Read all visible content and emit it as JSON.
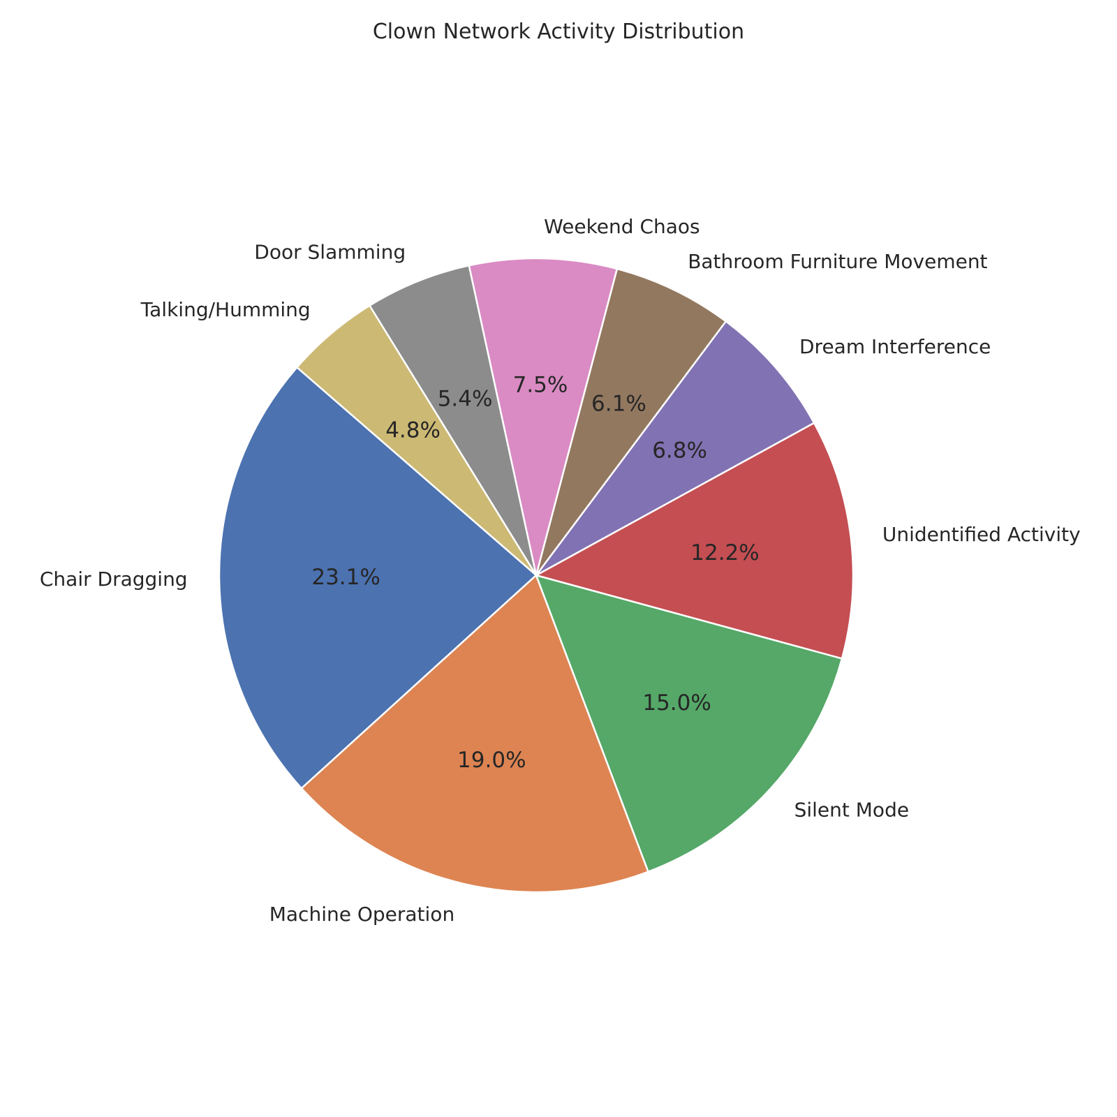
{
  "chart_data": {
    "type": "pie",
    "title": "Clown Network Activity Distribution",
    "start_angle_deg": 139,
    "direction": "counterclockwise",
    "slices": [
      {
        "label": "Chair Dragging",
        "value": 23.1,
        "pct_label": "23.1%",
        "color": "#4c72b0"
      },
      {
        "label": "Machine Operation",
        "value": 19.0,
        "pct_label": "19.0%",
        "color": "#dd8452"
      },
      {
        "label": "Silent Mode",
        "value": 15.0,
        "pct_label": "15.0%",
        "color": "#55a868"
      },
      {
        "label": "Unidentified Activity",
        "value": 12.2,
        "pct_label": "12.2%",
        "color": "#c44e52"
      },
      {
        "label": "Dream Interference",
        "value": 6.8,
        "pct_label": "6.8%",
        "color": "#8172b3"
      },
      {
        "label": "Bathroom Furniture Movement",
        "value": 6.1,
        "pct_label": "6.1%",
        "color": "#937860"
      },
      {
        "label": "Weekend Chaos",
        "value": 7.5,
        "pct_label": "7.5%",
        "color": "#da8bc3"
      },
      {
        "label": "Door Slamming",
        "value": 5.4,
        "pct_label": "5.4%",
        "color": "#8c8c8c"
      },
      {
        "label": "Talking/Humming",
        "value": 4.8,
        "pct_label": "4.8%",
        "color": "#ccb974"
      }
    ]
  }
}
